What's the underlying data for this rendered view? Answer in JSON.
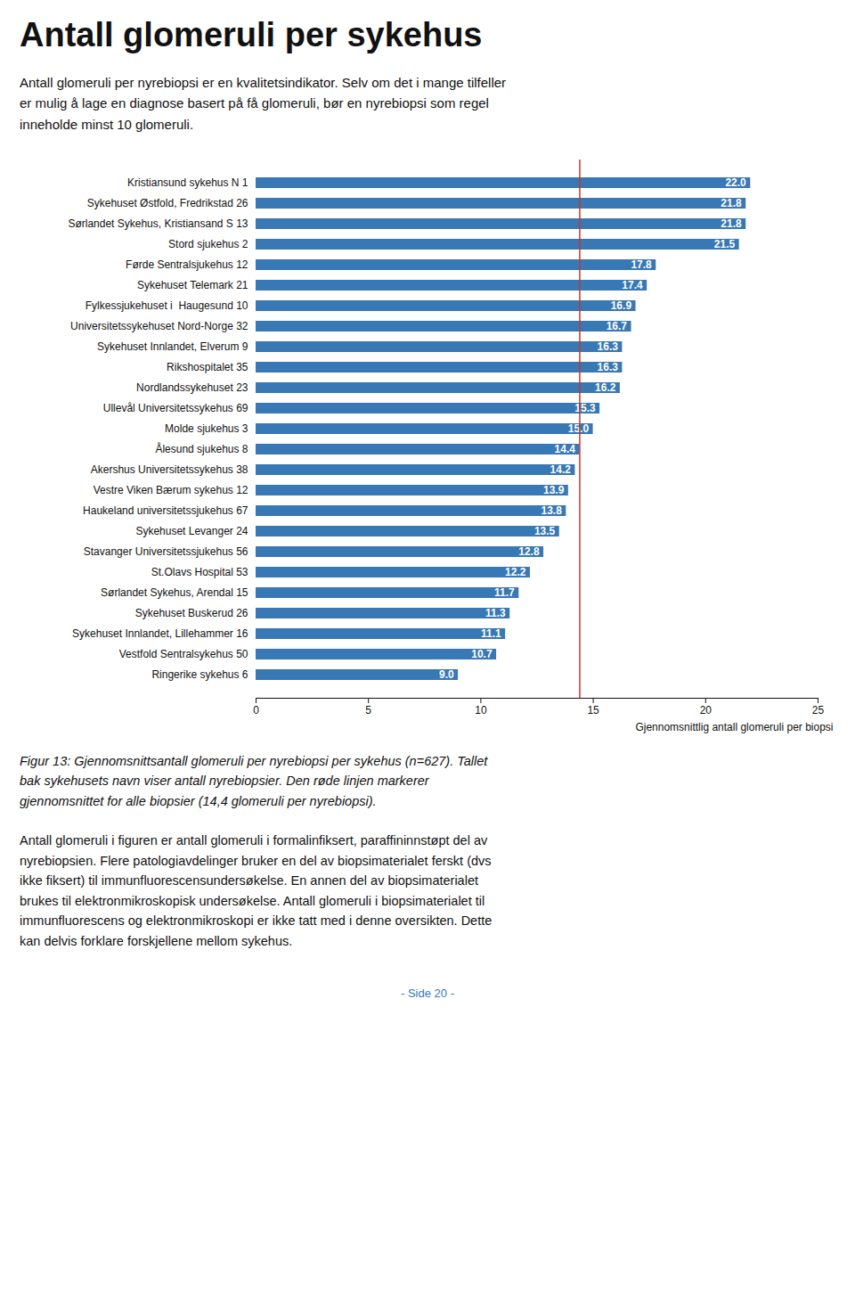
{
  "chart_data": {
    "type": "bar",
    "orientation": "horizontal",
    "title": "Antall glomeruli per sykehus",
    "subtitle": "Antall glomeruli per nyrebiopsi er en kvalitetsindikator. Selv om det i mange tilfeller\ner mulig å lage en diagnose basert på få glomeruli, bør en nyrebiopsi som regel\ninneholde minst 10 glomeruli.",
    "categories": [
      "Kristiansund sykehus N 1",
      "Sykehuset Østfold, Fredrikstad 26",
      "Sørlandet Sykehus, Kristiansand S 13",
      "Stord sjukehus 2",
      "Førde Sentralsjukehus 12",
      "Sykehuset Telemark 21",
      "Fylkessjukehuset i  Haugesund 10",
      "Universitetssykehuset Nord-Norge 32",
      "Sykehuset Innlandet, Elverum 9",
      "Rikshospitalet 35",
      "Nordlandssykehuset 23",
      "Ullevål Universitetssykehus 69",
      "Molde sjukehus 3",
      "Ålesund sjukehus 8",
      "Akershus Universitetssykehus 38",
      "Vestre Viken Bærum sykehus 12",
      "Haukeland universitetssjukehus 67",
      "Sykehuset Levanger 24",
      "Stavanger Universitetssjukehus 56",
      "St.Olavs Hospital 53",
      "Sørlandet Sykehus, Arendal 15",
      "Sykehuset Buskerud 26",
      "Sykehuset Innlandet, Lillehammer 16",
      "Vestfold Sentralsykehus 50",
      "Ringerike sykehus 6"
    ],
    "values": [
      22.0,
      21.8,
      21.8,
      21.5,
      17.8,
      17.4,
      16.9,
      16.7,
      16.3,
      16.3,
      16.2,
      15.3,
      15.0,
      14.4,
      14.2,
      13.9,
      13.8,
      13.5,
      12.8,
      12.2,
      11.7,
      11.3,
      11.1,
      10.7,
      9.0
    ],
    "value_labels": [
      "22.0",
      "21.8",
      "21.8",
      "21.5",
      "17.8",
      "17.4",
      "16.9",
      "16.7",
      "16.3",
      "16.3",
      "16.2",
      "15.3",
      "15.0",
      "14.4",
      "14.2",
      "13.9",
      "13.8",
      "13.5",
      "12.8",
      "12.2",
      "11.7",
      "11.3",
      "11.1",
      "10.7",
      "9.0"
    ],
    "data_labels": true,
    "color": "#3878b4",
    "reference_line": 14.4,
    "reference_line_color": "#c0392b",
    "xlabel": "Gjennomsnittlig antall glomeruli per biopsi",
    "xlim": [
      0,
      25
    ],
    "xticks": [
      0,
      5,
      10,
      15,
      20,
      25
    ],
    "grid": false,
    "caption": "Figur 13: Gjennomsnittsantall glomeruli per nyrebiopsi per sykehus (n=627). Tallet\nbak sykehusets navn viser antall nyrebiopsier. Den røde linjen markerer\ngjennomsnittet for alle biopsier (14,4 glomeruli per nyrebiopsi).",
    "body_text": "Antall glomeruli i figuren er antall glomeruli i formalinfiksert, paraffininnstøpt del av\nnyrebiopsien. Flere patologiavdelinger bruker en del av biopsimaterialet ferskt (dvs\nikke fiksert) til immunfluorescensundersøkelse. En annen del av biopsimaterialet\nbrukes til elektronmikroskopisk undersøkelse. Antall glomeruli i biopsimaterialet til\nimmunfluorescens og elektronmikroskopi er ikke tatt med i denne oversikten. Dette\nkan delvis forklare forskjellene mellom sykehus.",
    "page_number": "- Side 20 -"
  }
}
